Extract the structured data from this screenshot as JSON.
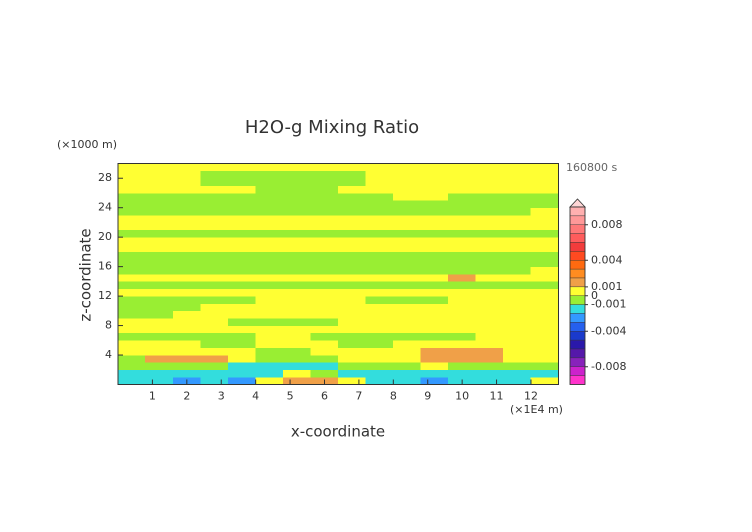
{
  "chart_data": {
    "type": "contour",
    "title": "H2O-g Mixing Ratio",
    "time_label": "160800 s",
    "xlabel": "x-coordinate",
    "ylabel": "z-coordinate",
    "x_unit": "(×1E4 m)",
    "y_unit": "(×1000 m)",
    "xlim": [
      0,
      12.8
    ],
    "ylim": [
      0,
      30
    ],
    "xticks": [
      1,
      2,
      3,
      4,
      5,
      6,
      7,
      8,
      9,
      10,
      11,
      12
    ],
    "yticks": [
      4,
      8,
      12,
      16,
      20,
      24,
      28
    ],
    "x": [
      0.4,
      1.2,
      2.0,
      2.8,
      3.6,
      4.4,
      5.2,
      6.0,
      6.8,
      7.6,
      8.4,
      9.2,
      10.0,
      10.8,
      11.6,
      12.4
    ],
    "z": [
      0.5,
      1.5,
      2.5,
      3.5,
      4.5,
      5.5,
      6.5,
      7.5,
      8.5,
      9.5,
      10.5,
      11.5,
      12.5,
      13.5,
      14.5,
      15.5,
      16.5,
      17.5,
      18.5,
      19.5,
      20.5,
      21.5,
      22.5,
      23.5,
      24.5,
      25.5,
      26.5,
      27.5,
      28.5,
      29.5
    ],
    "values": [
      [
        -0.0015,
        -0.0015,
        -0.0025,
        -0.0015,
        -0.0025,
        0.0005,
        0.0015,
        0.0015,
        0.0005,
        -0.0015,
        -0.0015,
        -0.0025,
        -0.0015,
        -0.0015,
        -0.0015,
        0.0005
      ],
      [
        -0.0015,
        -0.0015,
        -0.0015,
        -0.0015,
        -0.0015,
        -0.0015,
        0.0005,
        -0.0005,
        -0.0015,
        -0.0015,
        -0.0015,
        -0.0015,
        -0.0015,
        -0.0015,
        -0.0015,
        -0.0015
      ],
      [
        -0.0005,
        -0.0005,
        -0.0005,
        -0.0005,
        -0.0015,
        -0.0015,
        -0.0015,
        -0.0015,
        -0.0005,
        -0.0005,
        -0.0005,
        0.0005,
        -0.0005,
        -0.0005,
        -0.0005,
        -0.0005
      ],
      [
        -0.0005,
        0.0015,
        0.0015,
        0.0015,
        0.0005,
        -0.0005,
        -0.0005,
        -0.0005,
        0.0005,
        0.0005,
        0.0005,
        0.0015,
        0.0015,
        0.0015,
        0.0005,
        0.0005
      ],
      [
        0.0005,
        0.0005,
        0.0005,
        0.0005,
        0.0005,
        -0.0005,
        -0.0005,
        0.0005,
        0.0005,
        0.0005,
        0.0005,
        0.0015,
        0.0015,
        0.0015,
        0.0005,
        0.0005
      ],
      [
        0.0005,
        0.0005,
        0.0005,
        -0.0005,
        -0.0005,
        0.0005,
        0.0005,
        0.0005,
        -0.0005,
        -0.0005,
        0.0005,
        0.0005,
        0.0005,
        0.0005,
        0.0005,
        0.0005
      ],
      [
        -0.0005,
        -0.0005,
        -0.0005,
        -0.0005,
        -0.0005,
        0.0005,
        0.0005,
        -0.0005,
        -0.0005,
        -0.0005,
        -0.0005,
        -0.0005,
        -0.0005,
        0.0005,
        0.0005,
        0.0005
      ],
      [
        0.0005,
        0.0005,
        0.0005,
        0.0005,
        0.0005,
        0.0005,
        0.0005,
        0.0005,
        0.0005,
        0.0005,
        0.0005,
        0.0005,
        0.0005,
        0.0005,
        0.0005,
        0.0005
      ],
      [
        0.0005,
        0.0005,
        0.0005,
        0.0005,
        -0.0005,
        -0.0005,
        -0.0005,
        -0.0005,
        0.0005,
        0.0005,
        0.0005,
        0.0005,
        0.0005,
        0.0005,
        0.0005,
        0.0005
      ],
      [
        -0.0005,
        -0.0005,
        0.0005,
        0.0005,
        0.0005,
        0.0005,
        0.0005,
        0.0005,
        0.0005,
        0.0005,
        0.0005,
        0.0005,
        0.0005,
        0.0005,
        0.0005,
        0.0005
      ],
      [
        -0.0005,
        -0.0005,
        -0.0005,
        0.0005,
        0.0005,
        0.0005,
        0.0005,
        0.0005,
        0.0005,
        0.0005,
        0.0005,
        0.0005,
        0.0005,
        0.0005,
        0.0005,
        0.0005
      ],
      [
        -0.0005,
        -0.0005,
        -0.0005,
        -0.0005,
        -0.0005,
        0.0005,
        0.0005,
        0.0005,
        0.0005,
        -0.0005,
        -0.0005,
        -0.0005,
        0.0005,
        0.0005,
        0.0005,
        0.0005
      ],
      [
        0.0005,
        0.0005,
        0.0005,
        0.0005,
        0.0005,
        0.0005,
        0.0005,
        0.0005,
        0.0005,
        0.0005,
        0.0005,
        0.0005,
        0.0005,
        0.0005,
        0.0005,
        0.0005
      ],
      [
        -0.0005,
        -0.0005,
        -0.0005,
        -0.0005,
        -0.0005,
        -0.0005,
        -0.0005,
        -0.0005,
        -0.0005,
        -0.0005,
        -0.0005,
        -0.0005,
        -0.0005,
        -0.0005,
        -0.0005,
        -0.0005
      ],
      [
        0.0005,
        0.0005,
        0.0005,
        0.0005,
        0.0005,
        0.0005,
        0.0005,
        0.0005,
        0.0005,
        0.0005,
        0.0005,
        0.0005,
        0.0015,
        0.0005,
        0.0005,
        0.0005
      ],
      [
        -0.0005,
        -0.0005,
        -0.0005,
        -0.0005,
        -0.0005,
        -0.0005,
        -0.0005,
        -0.0005,
        -0.0005,
        -0.0005,
        -0.0005,
        -0.0005,
        -0.0005,
        -0.0005,
        -0.0005,
        0.0005
      ],
      [
        -0.0005,
        -0.0005,
        -0.0005,
        -0.0005,
        -0.0005,
        -0.0005,
        -0.0005,
        -0.0005,
        -0.0005,
        -0.0005,
        -0.0005,
        -0.0005,
        -0.0005,
        -0.0005,
        -0.0005,
        -0.0005
      ],
      [
        -0.0005,
        -0.0005,
        -0.0005,
        -0.0005,
        -0.0005,
        -0.0005,
        -0.0005,
        -0.0005,
        -0.0005,
        -0.0005,
        -0.0005,
        -0.0005,
        -0.0005,
        -0.0005,
        -0.0005,
        -0.0005
      ],
      [
        0.0005,
        0.0005,
        0.0005,
        0.0005,
        0.0005,
        0.0005,
        0.0005,
        0.0005,
        0.0005,
        0.0005,
        0.0005,
        0.0005,
        0.0005,
        0.0005,
        0.0005,
        0.0005
      ],
      [
        0.0005,
        0.0005,
        0.0005,
        0.0005,
        0.0005,
        0.0005,
        0.0005,
        0.0005,
        0.0005,
        0.0005,
        0.0005,
        0.0005,
        0.0005,
        0.0005,
        0.0005,
        0.0005
      ],
      [
        -0.0005,
        -0.0005,
        -0.0005,
        -0.0005,
        -0.0005,
        -0.0005,
        -0.0005,
        -0.0005,
        -0.0005,
        -0.0005,
        -0.0005,
        -0.0005,
        -0.0005,
        -0.0005,
        -0.0005,
        -0.0005
      ],
      [
        0.0005,
        0.0005,
        0.0005,
        0.0005,
        0.0005,
        0.0005,
        0.0005,
        0.0005,
        0.0005,
        0.0005,
        0.0005,
        0.0005,
        0.0005,
        0.0005,
        0.0005,
        0.0005
      ],
      [
        0.0005,
        0.0005,
        0.0005,
        0.0005,
        0.0005,
        0.0005,
        0.0005,
        0.0005,
        0.0005,
        0.0005,
        0.0005,
        0.0005,
        0.0005,
        0.0005,
        0.0005,
        0.0005
      ],
      [
        -0.0005,
        -0.0005,
        -0.0005,
        -0.0005,
        -0.0005,
        -0.0005,
        -0.0005,
        -0.0005,
        -0.0005,
        -0.0005,
        -0.0005,
        -0.0005,
        -0.0005,
        -0.0005,
        -0.0005,
        0.0005
      ],
      [
        -0.0005,
        -0.0005,
        -0.0005,
        -0.0005,
        -0.0005,
        -0.0005,
        -0.0005,
        -0.0005,
        -0.0005,
        -0.0005,
        -0.0005,
        -0.0005,
        -0.0005,
        -0.0005,
        -0.0005,
        -0.0005
      ],
      [
        -0.0005,
        -0.0005,
        -0.0005,
        -0.0005,
        -0.0005,
        -0.0005,
        -0.0005,
        -0.0005,
        -0.0005,
        -0.0005,
        0.0005,
        0.0005,
        -0.0005,
        -0.0005,
        -0.0005,
        -0.0005
      ],
      [
        0.0005,
        0.0005,
        0.0005,
        0.0005,
        0.0005,
        -0.0005,
        -0.0005,
        -0.0005,
        0.0005,
        0.0005,
        0.0005,
        0.0005,
        0.0005,
        0.0005,
        0.0005,
        0.0005
      ],
      [
        0.0005,
        0.0005,
        0.0005,
        -0.0005,
        -0.0005,
        -0.0005,
        -0.0005,
        -0.0005,
        -0.0005,
        0.0005,
        0.0005,
        0.0005,
        0.0005,
        0.0005,
        0.0005,
        0.0005
      ],
      [
        0.0005,
        0.0005,
        0.0005,
        -0.0005,
        -0.0005,
        -0.0005,
        -0.0005,
        -0.0005,
        -0.0005,
        0.0005,
        0.0005,
        0.0005,
        0.0005,
        0.0005,
        0.0005,
        0.0005
      ],
      [
        0.0005,
        0.0005,
        0.0005,
        0.0005,
        0.0005,
        0.0005,
        0.0005,
        0.0005,
        0.0005,
        0.0005,
        0.0005,
        0.0005,
        0.0005,
        0.0005,
        0.0005,
        0.0005
      ]
    ],
    "levels": [
      0.01,
      0.009,
      0.008,
      0.007,
      0.006,
      0.005,
      0.004,
      0.003,
      0.002,
      0.001,
      0,
      -0.001,
      -0.002,
      -0.003,
      -0.004,
      -0.005,
      -0.006,
      -0.007,
      -0.008,
      -0.009,
      -0.01
    ],
    "colors": [
      "#ffb0b0",
      "#ff9898",
      "#ff7878",
      "#ff5c5c",
      "#f23c3c",
      "#ff4a20",
      "#ff6a10",
      "#ff8c20",
      "#f0a048",
      "#ffff33",
      "#99ee33",
      "#33dddd",
      "#3399ff",
      "#2560ee",
      "#1a3acc",
      "#2a18aa",
      "#5518aa",
      "#8822bb",
      "#cc22cc",
      "#ff33cc"
    ],
    "over_color": "#ffd6d6",
    "colorbar_ticks": [
      0.008,
      0.004,
      0.001,
      0,
      -0.001,
      -0.004,
      -0.008
    ]
  }
}
